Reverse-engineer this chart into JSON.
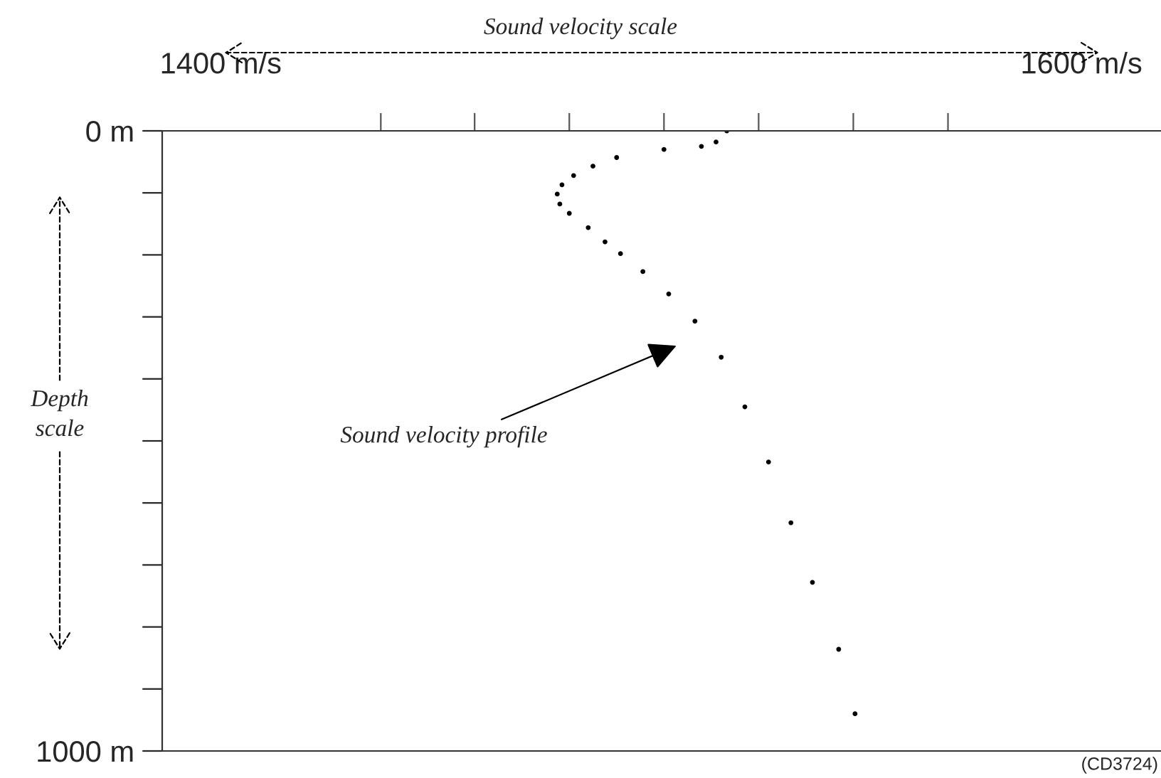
{
  "chart_data": {
    "type": "scatter",
    "title": "Sound velocity scale",
    "ylabel": "Depth\nscale",
    "x": [
      1517.6,
      1515.1,
      1511.7,
      1503,
      1492,
      1486.5,
      1482,
      1479.3,
      1478.2,
      1478.8,
      1481,
      1485.4,
      1489.3,
      1492.9,
      1498.1,
      1504.1,
      1510.2,
      1516.3,
      1521.8,
      1527.3,
      1532.5,
      1537.5,
      1543.6,
      1547.4
    ],
    "series": [
      {
        "color": "#000000",
        "values": [
          0,
          18,
          25,
          30,
          43,
          57,
          72,
          87,
          102,
          118,
          133,
          156,
          179,
          198,
          227,
          263,
          307,
          365,
          445,
          534,
          632,
          728,
          836,
          940
        ]
      }
    ],
    "marker": "circle",
    "xlim": [
      1386.4,
      1618.5
    ],
    "xticks": [
      {
        "value": 1400,
        "label": "1400 m/s"
      },
      {
        "value": 1437.2,
        "label": null
      },
      {
        "value": 1459,
        "label": null
      },
      {
        "value": 1481,
        "label": null
      },
      {
        "value": 1503,
        "label": null
      },
      {
        "value": 1525,
        "label": null
      },
      {
        "value": 1547,
        "label": null
      },
      {
        "value": 1569,
        "label": null
      },
      {
        "value": 1600,
        "label": "1600 m/s"
      }
    ],
    "ylim": [
      1000,
      0
    ],
    "yticks": [
      {
        "value": 0,
        "label": "0 m"
      },
      {
        "value": 100,
        "label": null
      },
      {
        "value": 200,
        "label": null
      },
      {
        "value": 300,
        "label": null
      },
      {
        "value": 400,
        "label": null
      },
      {
        "value": 500,
        "label": null
      },
      {
        "value": 600,
        "label": null
      },
      {
        "value": 700,
        "label": null
      },
      {
        "value": 800,
        "label": null
      },
      {
        "value": 900,
        "label": null
      },
      {
        "value": 1000,
        "label": "1000 m"
      }
    ],
    "grid": false,
    "legend": false,
    "annotations": [
      "Sound velocity profile",
      "(CD3724)"
    ]
  }
}
